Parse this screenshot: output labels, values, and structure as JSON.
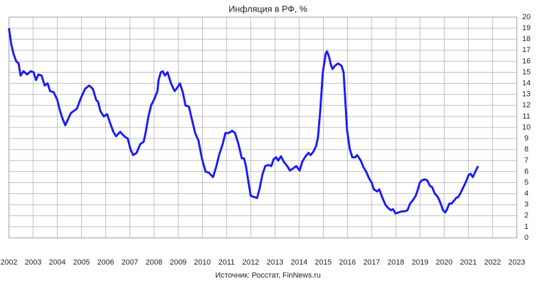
{
  "chart_data": {
    "type": "line",
    "title": "Инфляция в РФ, %",
    "source": "Источник: Росстат, FinNews.ru",
    "xlim": [
      2002,
      2023
    ],
    "xticks": [
      2002,
      2003,
      2004,
      2005,
      2006,
      2007,
      2008,
      2009,
      2010,
      2011,
      2012,
      2013,
      2014,
      2015,
      2016,
      2017,
      2018,
      2019,
      2020,
      2021,
      2022,
      2023
    ],
    "ylim": [
      0,
      20
    ],
    "yticks": [
      0,
      1,
      2,
      3,
      4,
      5,
      6,
      7,
      8,
      9,
      10,
      11,
      12,
      13,
      14,
      15,
      16,
      17,
      18,
      19,
      20
    ],
    "grid": true,
    "y_axis_side": "right",
    "x": [
      2002.0,
      2002.1,
      2002.2,
      2002.3,
      2002.4,
      2002.48,
      2002.6,
      2002.75,
      2002.9,
      2003.02,
      2003.12,
      2003.22,
      2003.35,
      2003.48,
      2003.6,
      2003.7,
      2003.85,
      2004.0,
      2004.1,
      2004.2,
      2004.33,
      2004.56,
      2004.81,
      2004.98,
      2005.15,
      2005.32,
      2005.47,
      2005.61,
      2005.69,
      2005.78,
      2005.92,
      2006.06,
      2006.2,
      2006.32,
      2006.43,
      2006.6,
      2006.77,
      2006.91,
      2007.03,
      2007.14,
      2007.28,
      2007.43,
      2007.57,
      2007.65,
      2007.77,
      2007.88,
      2008.02,
      2008.14,
      2008.19,
      2008.28,
      2008.36,
      2008.45,
      2008.56,
      2008.7,
      2008.85,
      2008.96,
      2009.07,
      2009.19,
      2009.3,
      2009.44,
      2009.56,
      2009.7,
      2009.84,
      2009.98,
      2010.13,
      2010.27,
      2010.44,
      2010.58,
      2010.69,
      2010.84,
      2010.95,
      2011.09,
      2011.23,
      2011.35,
      2011.49,
      2011.63,
      2011.72,
      2011.8,
      2011.91,
      2012.0,
      2012.14,
      2012.26,
      2012.37,
      2012.48,
      2012.6,
      2012.74,
      2012.85,
      2012.94,
      2013.05,
      2013.14,
      2013.25,
      2013.36,
      2013.51,
      2013.62,
      2013.76,
      2013.88,
      2014.02,
      2014.13,
      2014.27,
      2014.39,
      2014.47,
      2014.59,
      2014.7,
      2014.78,
      2014.87,
      2014.98,
      2015.1,
      2015.15,
      2015.24,
      2015.3,
      2015.38,
      2015.49,
      2015.61,
      2015.75,
      2015.84,
      2015.92,
      2015.98,
      2016.09,
      2016.2,
      2016.32,
      2016.4,
      2016.55,
      2016.66,
      2016.77,
      2016.89,
      2017.0,
      2017.09,
      2017.23,
      2017.31,
      2017.43,
      2017.57,
      2017.68,
      2017.8,
      2017.88,
      2017.99,
      2018.11,
      2018.25,
      2018.36,
      2018.48,
      2018.59,
      2018.7,
      2018.82,
      2018.9,
      2018.99,
      2019.07,
      2019.19,
      2019.3,
      2019.41,
      2019.5,
      2019.61,
      2019.7,
      2019.78,
      2019.87,
      2019.95,
      2020.04,
      2020.1,
      2020.21,
      2020.3,
      2020.38,
      2020.49,
      2020.58,
      2020.66,
      2020.75,
      2020.86,
      2020.92,
      2021.01,
      2021.09,
      2021.18,
      2021.29,
      2021.4
    ],
    "series": [
      {
        "color": "#1a1aff",
        "values": [
          19.0,
          17.5,
          16.6,
          16.0,
          15.8,
          14.7,
          15.1,
          14.8,
          15.1,
          15.0,
          14.3,
          14.8,
          14.7,
          13.8,
          14.0,
          13.3,
          13.2,
          12.5,
          11.6,
          10.9,
          10.2,
          11.3,
          11.7,
          12.7,
          13.5,
          13.8,
          13.5,
          12.5,
          12.3,
          11.5,
          11.0,
          11.2,
          10.3,
          9.6,
          9.2,
          9.6,
          9.2,
          9.0,
          8.0,
          7.5,
          7.7,
          8.5,
          8.7,
          9.5,
          11.0,
          12.0,
          12.6,
          13.3,
          14.3,
          15.0,
          15.1,
          14.7,
          15.0,
          14.0,
          13.3,
          13.6,
          14.0,
          13.2,
          12.0,
          11.9,
          10.8,
          9.5,
          8.8,
          7.2,
          6.0,
          5.9,
          5.5,
          6.5,
          7.5,
          8.5,
          9.5,
          9.5,
          9.7,
          9.5,
          8.5,
          7.2,
          7.2,
          6.5,
          5.0,
          3.8,
          3.7,
          3.6,
          4.5,
          5.7,
          6.5,
          6.6,
          6.5,
          7.1,
          7.3,
          7.0,
          7.4,
          6.9,
          6.5,
          6.1,
          6.3,
          6.5,
          6.1,
          6.9,
          7.4,
          7.7,
          7.5,
          7.8,
          8.3,
          9.1,
          11.4,
          15.0,
          16.7,
          16.9,
          16.4,
          15.8,
          15.3,
          15.6,
          15.8,
          15.6,
          15.0,
          12.0,
          9.8,
          8.1,
          7.3,
          7.3,
          7.5,
          7.0,
          6.4,
          6.0,
          5.4,
          5.0,
          4.4,
          4.2,
          4.4,
          3.7,
          3.0,
          2.7,
          2.5,
          2.6,
          2.2,
          2.3,
          2.4,
          2.4,
          2.5,
          3.1,
          3.4,
          3.8,
          4.3,
          5.0,
          5.2,
          5.3,
          5.2,
          4.7,
          4.6,
          4.0,
          3.8,
          3.5,
          3.0,
          2.5,
          2.3,
          2.5,
          3.1,
          3.1,
          3.3,
          3.6,
          3.7,
          4.0,
          4.4,
          4.9,
          5.2,
          5.7,
          5.8,
          5.5,
          6.0,
          6.5
        ]
      }
    ]
  }
}
